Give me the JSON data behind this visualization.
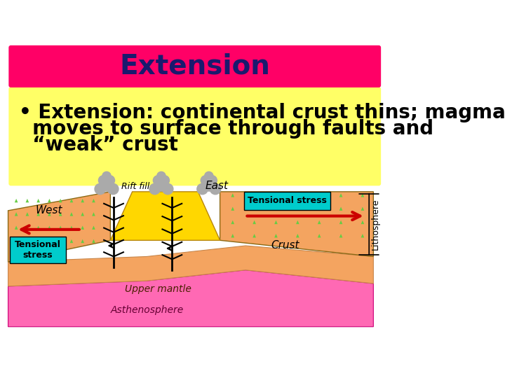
{
  "title": "Extension",
  "title_bg_color": "#FF0066",
  "title_text_color": "#1a1a6e",
  "title_fontsize": 28,
  "body_bg_color": "#FFFF66",
  "slide_bg_color": "#FFFFFF",
  "bullet_text_line1": "• Extension: continental crust thins; magma",
  "bullet_text_line2": "  moves to surface through faults and",
  "bullet_text_line3": "  “weak” crust",
  "bullet_fontsize": 20,
  "bullet_text_color": "#000000",
  "diagram_labels": {
    "west": "West",
    "east": "East",
    "rift_fill": "Rift fill",
    "upper_mantle": "Upper mantle",
    "asthenosphere": "Asthenosphere",
    "crust": "Crust",
    "lithosphere": "Lithosphere"
  },
  "tensional_stress_box_color": "#00CCCC",
  "tensional_stress_text": "Tensional stress",
  "tensional_stress_text2": "Tensional\nstress",
  "arrow_color": "#CC0000",
  "crust_color": "#F4A460",
  "mantle_color": "#FF69B4",
  "rift_fill_color": "#FFD700",
  "asthenosphere_color": "#FF1493"
}
